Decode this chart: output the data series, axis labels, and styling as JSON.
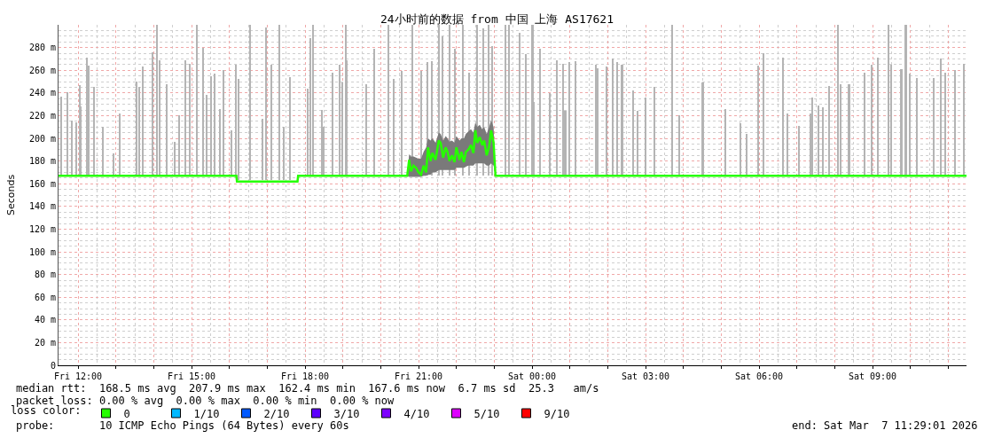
{
  "chart_data": {
    "type": "line",
    "title": "24小时前的数据 from 中国 上海 AS17621",
    "ylabel": "Seconds",
    "legend_title": "loss color:",
    "legend": "bottom",
    "grid": true,
    "xlim": [
      "2026-03-06T11:29",
      "2026-03-07T11:29"
    ],
    "xticks": [
      {
        "value": "2026-03-06T12:00",
        "label": "Fri 12:00"
      },
      {
        "value": "2026-03-06T13:00",
        "label": null
      },
      {
        "value": "2026-03-06T14:00",
        "label": null
      },
      {
        "value": "2026-03-06T15:00",
        "label": "Fri 15:00"
      },
      {
        "value": "2026-03-06T16:00",
        "label": null
      },
      {
        "value": "2026-03-06T17:00",
        "label": null
      },
      {
        "value": "2026-03-06T18:00",
        "label": "Fri 18:00"
      },
      {
        "value": "2026-03-06T19:00",
        "label": null
      },
      {
        "value": "2026-03-06T20:00",
        "label": null
      },
      {
        "value": "2026-03-06T21:00",
        "label": "Fri 21:00"
      },
      {
        "value": "2026-03-06T22:00",
        "label": null
      },
      {
        "value": "2026-03-06T23:00",
        "label": null
      },
      {
        "value": "2026-03-07T00:00",
        "label": "Sat 00:00"
      },
      {
        "value": "2026-03-07T01:00",
        "label": null
      },
      {
        "value": "2026-03-07T02:00",
        "label": null
      },
      {
        "value": "2026-03-07T03:00",
        "label": "Sat 03:00"
      },
      {
        "value": "2026-03-07T04:00",
        "label": null
      },
      {
        "value": "2026-03-07T05:00",
        "label": null
      },
      {
        "value": "2026-03-07T06:00",
        "label": "Sat 06:00"
      },
      {
        "value": "2026-03-07T07:00",
        "label": null
      },
      {
        "value": "2026-03-07T08:00",
        "label": null
      },
      {
        "value": "2026-03-07T09:00",
        "label": "Sat 09:00"
      },
      {
        "value": "2026-03-07T10:00",
        "label": null
      },
      {
        "value": "2026-03-07T11:00",
        "label": null
      }
    ],
    "ylim": [
      0,
      300
    ],
    "yticks": [
      0,
      {
        "value": 20,
        "label": "20 m"
      },
      {
        "value": 40,
        "label": "40 m"
      },
      {
        "value": 60,
        "label": "60 m"
      },
      {
        "value": 80,
        "label": "80 m"
      },
      {
        "value": 100,
        "label": "100 m"
      },
      {
        "value": 120,
        "label": "120 m"
      },
      {
        "value": 140,
        "label": "140 m"
      },
      {
        "value": 160,
        "label": "160 m"
      },
      {
        "value": 180,
        "label": "180 m"
      },
      {
        "value": 200,
        "label": "200 m"
      },
      {
        "value": 220,
        "label": "220 m"
      },
      {
        "value": 240,
        "label": "240 m"
      },
      {
        "value": 260,
        "label": "260 m"
      },
      {
        "value": 280,
        "label": "280 m"
      }
    ],
    "series": [
      {
        "type": "bar",
        "color": "#b4b4b4",
        "x": [
          "2026-03-06T11:34",
          "2026-03-06T11:44",
          "2026-03-06T11:51",
          "2026-03-06T11:58",
          "2026-03-06T12:03",
          "2026-03-06T12:05",
          "2026-03-06T12:15",
          "2026-03-06T12:17",
          "2026-03-06T12:26",
          "2026-03-06T12:40",
          "2026-03-06T12:57",
          "2026-03-06T13:07",
          "2026-03-06T13:33",
          "2026-03-06T13:37",
          "2026-03-06T13:43",
          "2026-03-06T13:59",
          "2026-03-06T14:06",
          "2026-03-06T14:09",
          "2026-03-06T14:21",
          "2026-03-06T14:33",
          "2026-03-06T14:41",
          "2026-03-06T14:51",
          "2026-03-06T14:57",
          "2026-03-06T15:09",
          "2026-03-06T15:18",
          "2026-03-06T15:24",
          "2026-03-06T15:31",
          "2026-03-06T15:37",
          "2026-03-06T15:45",
          "2026-03-06T15:51",
          "2026-03-06T16:04",
          "2026-03-06T16:11",
          "2026-03-06T16:15",
          "2026-03-06T16:33",
          "2026-03-06T16:53",
          "2026-03-06T16:58",
          "2026-03-06T17:07",
          "2026-03-06T17:19",
          "2026-03-06T17:26",
          "2026-03-06T17:37",
          "2026-03-06T18:04",
          "2026-03-06T18:09",
          "2026-03-06T18:13",
          "2026-03-06T18:27",
          "2026-03-06T18:30",
          "2026-03-06T18:44",
          "2026-03-06T18:55",
          "2026-03-06T18:59",
          "2026-03-06T19:05",
          "2026-03-06T19:07",
          "2026-03-06T19:37",
          "2026-03-06T19:50",
          "2026-03-06T20:13",
          "2026-03-06T20:21",
          "2026-03-06T20:34",
          "2026-03-06T20:50",
          "2026-03-06T21:04",
          "2026-03-06T21:15",
          "2026-03-06T21:21",
          "2026-03-06T21:33",
          "2026-03-06T21:38",
          "2026-03-06T21:50",
          "2026-03-06T21:58",
          "2026-03-06T22:11",
          "2026-03-06T22:21",
          "2026-03-06T22:33",
          "2026-03-06T22:43",
          "2026-03-06T22:52",
          "2026-03-06T22:57",
          "2026-03-06T23:18",
          "2026-03-06T23:24",
          "2026-03-06T23:41",
          "2026-03-06T23:50",
          "2026-03-07T00:01",
          "2026-03-07T00:03",
          "2026-03-07T00:13",
          "2026-03-07T00:28",
          "2026-03-07T00:40",
          "2026-03-07T00:50",
          "2026-03-07T00:53",
          "2026-03-07T00:59",
          "2026-03-07T01:09",
          "2026-03-07T01:41",
          "2026-03-07T01:45",
          "2026-03-07T01:58",
          "2026-03-07T02:08",
          "2026-03-07T02:15",
          "2026-03-07T02:23",
          "2026-03-07T02:40",
          "2026-03-07T02:47",
          "2026-03-07T03:00",
          "2026-03-07T03:15",
          "2026-03-07T03:43",
          "2026-03-07T03:54",
          "2026-03-07T04:31",
          "2026-03-07T05:07",
          "2026-03-07T05:31",
          "2026-03-07T05:40",
          "2026-03-07T05:59",
          "2026-03-07T06:07",
          "2026-03-07T06:38",
          "2026-03-07T06:45",
          "2026-03-07T07:04",
          "2026-03-07T07:22",
          "2026-03-07T07:25",
          "2026-03-07T07:34",
          "2026-03-07T07:42",
          "2026-03-07T07:51",
          "2026-03-07T08:05",
          "2026-03-07T08:10",
          "2026-03-07T08:23",
          "2026-03-07T08:47",
          "2026-03-07T08:59",
          "2026-03-07T09:09",
          "2026-03-07T09:25",
          "2026-03-07T09:30",
          "2026-03-07T09:46",
          "2026-03-07T09:53",
          "2026-03-07T10:00",
          "2026-03-07T10:11",
          "2026-03-07T10:37",
          "2026-03-07T10:49",
          "2026-03-07T10:56",
          "2026-03-07T11:11",
          "2026-03-07T11:25"
        ],
        "base": [
          167,
          167,
          167,
          167,
          167,
          167,
          167,
          167,
          167,
          167,
          167,
          167,
          167,
          167,
          167,
          167,
          167,
          167,
          167,
          167,
          167,
          167,
          167,
          167,
          167,
          167,
          167,
          167,
          167,
          167,
          167,
          167,
          163,
          163,
          163,
          163,
          163,
          163,
          163,
          163,
          167,
          167,
          167,
          167,
          167,
          167,
          167,
          167,
          167,
          167,
          167,
          167,
          167,
          167,
          167,
          167,
          167,
          167,
          167,
          167,
          167,
          167,
          167,
          167,
          167,
          167,
          167,
          167,
          167,
          167,
          167,
          167,
          167,
          167,
          167,
          167,
          167,
          167,
          167,
          167,
          167,
          167,
          167,
          167,
          167,
          167,
          167,
          167,
          167,
          167,
          167,
          167,
          167,
          167,
          167,
          167,
          167,
          167,
          167,
          167,
          167,
          167,
          167,
          167,
          167,
          167,
          167,
          167,
          167,
          167,
          167,
          167,
          167,
          167,
          167,
          167,
          167,
          167,
          167,
          167,
          167,
          167,
          167,
          167,
          167
        ],
        "values": [
          70,
          74,
          49,
          47,
          80,
          61,
          104,
          97,
          78,
          43,
          20,
          55,
          83,
          78,
          96,
          109,
          133,
          102,
          81,
          30,
          53,
          102,
          99,
          133,
          113,
          71,
          88,
          90,
          59,
          93,
          40,
          98,
          89,
          137,
          54,
          135,
          102,
          137,
          47,
          91,
          77,
          121,
          133,
          58,
          43,
          91,
          98,
          82,
          133,
          102,
          81,
          112,
          133,
          85,
          92,
          133,
          92,
          100,
          101,
          133,
          123,
          133,
          112,
          133,
          91,
          133,
          130,
          133,
          114,
          133,
          133,
          126,
          107,
          133,
          65,
          112,
          73,
          102,
          99,
          57,
          100,
          101,
          98,
          95,
          96,
          103,
          100,
          98,
          75,
          57,
          69,
          78,
          133,
          53,
          82,
          59,
          46,
          37,
          97,
          108,
          104,
          55,
          44,
          55,
          69,
          62,
          60,
          79,
          133,
          81,
          81,
          91,
          98,
          104,
          133,
          98,
          94,
          133,
          90,
          86,
          86,
          103,
          91,
          93,
          99
        ]
      },
      {
        "name": "0",
        "color": "#26ff00",
        "x": [
          "2026-03-06T11:29",
          "2026-03-06T16:11",
          "2026-03-06T16:12",
          "2026-03-06T17:48",
          "2026-03-06T17:49",
          "2026-03-06T20:42",
          "2026-03-06T20:45",
          "2026-03-06T20:48",
          "2026-03-06T20:52",
          "2026-03-06T20:56",
          "2026-03-06T21:00",
          "2026-03-06T21:04",
          "2026-03-06T21:08",
          "2026-03-06T21:12",
          "2026-03-06T21:15",
          "2026-03-06T21:19",
          "2026-03-06T21:22",
          "2026-03-06T21:27",
          "2026-03-06T21:32",
          "2026-03-06T21:35",
          "2026-03-06T21:39",
          "2026-03-06T21:43",
          "2026-03-06T21:46",
          "2026-03-06T21:49",
          "2026-03-06T21:53",
          "2026-03-06T21:57",
          "2026-03-06T22:00",
          "2026-03-06T22:05",
          "2026-03-06T22:08",
          "2026-03-06T22:12",
          "2026-03-06T22:15",
          "2026-03-06T22:19",
          "2026-03-06T22:23",
          "2026-03-06T22:27",
          "2026-03-06T22:30",
          "2026-03-06T22:33",
          "2026-03-06T22:37",
          "2026-03-06T22:41",
          "2026-03-06T22:44",
          "2026-03-06T22:48",
          "2026-03-06T22:52",
          "2026-03-06T22:55",
          "2026-03-06T22:59",
          "2026-03-06T23:02",
          "2026-03-07T11:29"
        ],
        "values": [
          167,
          167,
          162,
          162,
          167,
          167,
          181,
          171,
          176,
          174,
          170,
          168,
          176,
          170,
          192,
          180,
          187,
          181,
          198,
          196,
          183,
          192,
          188,
          180,
          185,
          179,
          192,
          181,
          188,
          179,
          188,
          190,
          194,
          187,
          207,
          196,
          201,
          194,
          198,
          185,
          193,
          207,
          196,
          167,
          167
        ],
        "lower": [
          null,
          null,
          null,
          null,
          null,
          167,
          166,
          166,
          166,
          166,
          166,
          166,
          167,
          167,
          168,
          168,
          170,
          170,
          172,
          172,
          172,
          172,
          172,
          172,
          172,
          172,
          174,
          174,
          174,
          174,
          175,
          176,
          176,
          176,
          178,
          178,
          178,
          178,
          178,
          176,
          176,
          178,
          176,
          167,
          null
        ],
        "upper": [
          null,
          null,
          null,
          null,
          null,
          167,
          186,
          184,
          184,
          183,
          182,
          182,
          188,
          192,
          200,
          198,
          200,
          196,
          205,
          204,
          198,
          202,
          200,
          197,
          198,
          196,
          202,
          198,
          200,
          200,
          204,
          206,
          208,
          205,
          214,
          210,
          212,
          208,
          210,
          204,
          210,
          216,
          210,
          167,
          null
        ]
      },
      {
        "name": "1/10",
        "color": "#00b8ff"
      },
      {
        "name": "2/10",
        "color": "#0059ff"
      },
      {
        "name": "3/10",
        "color": "#5e00ff"
      },
      {
        "name": "4/10",
        "color": "#7e00ff"
      },
      {
        "name": "5/10",
        "color": "#dd00ff"
      },
      {
        "name": "9/10",
        "color": "#ff0000"
      }
    ],
    "annotations": [
      "median rtt:  168.5 ms avg  207.9 ms max  162.4 ms min  167.6 ms now  6.7 ms sd  25.3   am/s",
      "packet loss: 0.00 % avg  0.00 % max  0.00 % min  0.00 % now",
      "probe:       10 ICMP Echo Pings (64 Bytes) every 60s",
      "end: Sat Mar  7 11:29:01 2026"
    ]
  }
}
